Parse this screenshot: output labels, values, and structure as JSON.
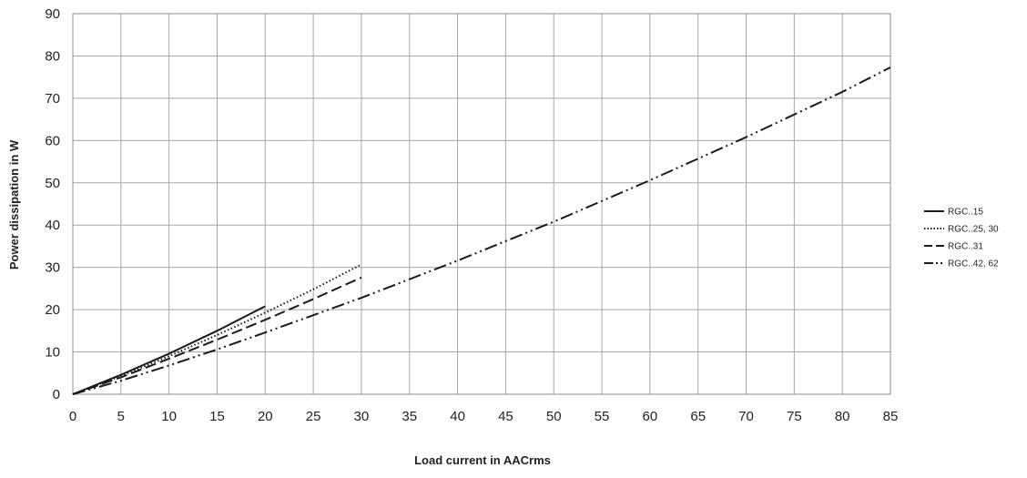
{
  "chart_data": {
    "type": "line",
    "title": "",
    "xlabel": "Load current in AACrms",
    "ylabel": "Power dissipation in W",
    "xlim": [
      0,
      85
    ],
    "ylim": [
      0,
      90
    ],
    "xticks": [
      0,
      5,
      10,
      15,
      20,
      25,
      30,
      35,
      40,
      45,
      50,
      55,
      60,
      65,
      70,
      75,
      80,
      85
    ],
    "yticks": [
      0,
      10,
      20,
      30,
      40,
      50,
      60,
      70,
      80,
      90
    ],
    "grid": true,
    "legend_position": "right",
    "line_color": "#1a1a1a",
    "series": [
      {
        "name": "RGC..15",
        "style": "solid",
        "x": [
          0,
          5,
          10,
          15,
          20
        ],
        "y": [
          0,
          4.6,
          9.6,
          15.0,
          20.8
        ]
      },
      {
        "name": "RGC..25, 30",
        "style": "dotted",
        "x": [
          0,
          5,
          10,
          15,
          20,
          25,
          30
        ],
        "y": [
          0,
          4.3,
          9.0,
          14.0,
          19.3,
          24.8,
          30.7
        ]
      },
      {
        "name": "RGC..31",
        "style": "dashed",
        "x": [
          0,
          5,
          10,
          15,
          20,
          25,
          30
        ],
        "y": [
          0,
          4.0,
          8.4,
          12.9,
          17.6,
          22.5,
          27.6
        ]
      },
      {
        "name": "RGC..42, 62",
        "style": "dash-dot-dot",
        "x": [
          0,
          5,
          10,
          15,
          20,
          25,
          30,
          40,
          50,
          60,
          70,
          80,
          85
        ],
        "y": [
          0,
          3.2,
          6.8,
          10.6,
          14.6,
          18.7,
          22.8,
          31.6,
          40.8,
          50.6,
          60.8,
          71.5,
          77.3
        ]
      }
    ]
  }
}
